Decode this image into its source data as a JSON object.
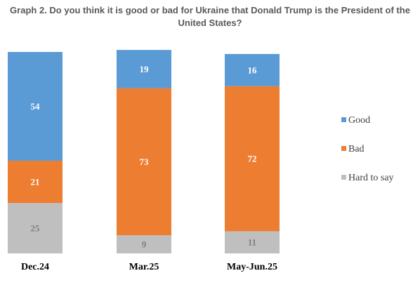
{
  "chart_data": {
    "type": "bar",
    "stacked": true,
    "title": "Graph 2. Do you think it is good or bad for Ukraine that Donald Trump is the President of the United States?",
    "categories": [
      "Dec.24",
      "Mar.25",
      "May-Jun.25"
    ],
    "series": [
      {
        "name": "Good",
        "values": [
          54,
          19,
          16
        ],
        "color": "#5b9bd5",
        "label_color": "#ffffff"
      },
      {
        "name": "Bad",
        "values": [
          21,
          73,
          72
        ],
        "color": "#ed7d31",
        "label_color": "#ffffff"
      },
      {
        "name": "Hard to say",
        "values": [
          25,
          9,
          11
        ],
        "color": "#bfbfbf",
        "label_color": "#7f7f7f"
      }
    ],
    "stack_order": [
      "Hard to say",
      "Bad",
      "Good"
    ],
    "ylim": [
      0,
      100
    ],
    "grid": false,
    "legend_position": "right"
  }
}
